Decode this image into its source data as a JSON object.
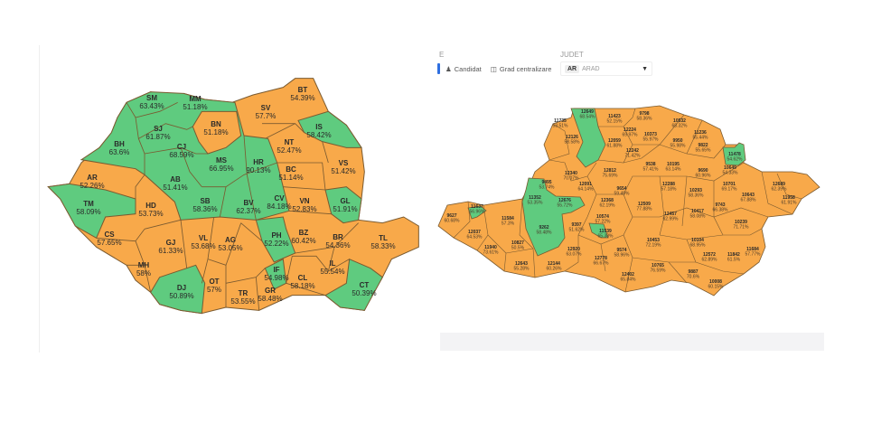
{
  "colors": {
    "orange": "#F8A94A",
    "green": "#5FCB7F",
    "border": "#7a5a30",
    "text": "#2a2a2a"
  },
  "national_map": {
    "counties": [
      {
        "code": "SM",
        "value": "63.43%",
        "color": "green"
      },
      {
        "code": "MM",
        "value": "51.18%",
        "color": "green"
      },
      {
        "code": "BT",
        "value": "54.39%",
        "color": "orange"
      },
      {
        "code": "SV",
        "value": "57.7%",
        "color": "orange"
      },
      {
        "code": "BN",
        "value": "51.18%",
        "color": "orange"
      },
      {
        "code": "IS",
        "value": "58.42%",
        "color": "green"
      },
      {
        "code": "SJ",
        "value": "61.87%",
        "color": "green"
      },
      {
        "code": "BH",
        "value": "63.6%",
        "color": "green"
      },
      {
        "code": "CJ",
        "value": "68.59%",
        "color": "green"
      },
      {
        "code": "NT",
        "value": "52.47%",
        "color": "orange"
      },
      {
        "code": "MS",
        "value": "66.95%",
        "color": "green"
      },
      {
        "code": "HR",
        "value": "90.13%",
        "color": "green"
      },
      {
        "code": "VS",
        "value": "51.42%",
        "color": "orange"
      },
      {
        "code": "BC",
        "value": "51.14%",
        "color": "orange"
      },
      {
        "code": "AR",
        "value": "52.26%",
        "color": "orange"
      },
      {
        "code": "AB",
        "value": "51.41%",
        "color": "green"
      },
      {
        "code": "SB",
        "value": "58.36%",
        "color": "green"
      },
      {
        "code": "BV",
        "value": "62.37%",
        "color": "green"
      },
      {
        "code": "CV",
        "value": "84.18%",
        "color": "green"
      },
      {
        "code": "TM",
        "value": "58.09%",
        "color": "green"
      },
      {
        "code": "HD",
        "value": "53.73%",
        "color": "orange"
      },
      {
        "code": "VN",
        "value": "52.83%",
        "color": "orange"
      },
      {
        "code": "GL",
        "value": "51.91%",
        "color": "green"
      },
      {
        "code": "CS",
        "value": "57.65%",
        "color": "orange"
      },
      {
        "code": "GJ",
        "value": "61.33%",
        "color": "orange"
      },
      {
        "code": "VL",
        "value": "53.68%",
        "color": "orange"
      },
      {
        "code": "AG",
        "value": "53.05%",
        "color": "orange"
      },
      {
        "code": "PH",
        "value": "52.22%",
        "color": "green"
      },
      {
        "code": "BZ",
        "value": "60.42%",
        "color": "orange"
      },
      {
        "code": "BR",
        "value": "54.36%",
        "color": "orange"
      },
      {
        "code": "TL",
        "value": "58.33%",
        "color": "orange"
      },
      {
        "code": "MH",
        "value": "58%",
        "color": "orange"
      },
      {
        "code": "IF",
        "value": "54.98%",
        "color": "green"
      },
      {
        "code": "IL",
        "value": "55.54%",
        "color": "orange"
      },
      {
        "code": "CT",
        "value": "50.39%",
        "color": "green"
      },
      {
        "code": "DJ",
        "value": "50.89%",
        "color": "green"
      },
      {
        "code": "OT",
        "value": "57%",
        "color": "orange"
      },
      {
        "code": "CL",
        "value": "58.18%",
        "color": "orange"
      },
      {
        "code": "TR",
        "value": "53.55%",
        "color": "orange"
      },
      {
        "code": "GR",
        "value": "58.48%",
        "color": "orange"
      }
    ]
  },
  "county_view": {
    "filter_label": "E",
    "mode_options": [
      {
        "label": "Candidat",
        "icon": "person-icon",
        "active": true
      },
      {
        "label": "Grad centralizare",
        "icon": "chart-icon",
        "active": false
      }
    ],
    "judet_label": "JUDET",
    "judet_select": {
      "code": "AR",
      "name": "ARAD"
    },
    "localities": [
      {
        "id": "12649",
        "value": "68.54%",
        "color": "green"
      },
      {
        "id": "11735",
        "value": "53.51%",
        "color": "orange"
      },
      {
        "id": "11423",
        "value": "52.15%",
        "color": "orange"
      },
      {
        "id": "12126",
        "value": "58.58%",
        "color": "orange"
      },
      {
        "id": "12059",
        "value": "61.88%",
        "color": "orange"
      },
      {
        "id": "12340",
        "value": "70.07%",
        "color": "orange"
      },
      {
        "id": "9495",
        "value": "53.74%",
        "color": "green"
      },
      {
        "id": "12091",
        "value": "64.14%",
        "color": "orange"
      },
      {
        "id": "11352",
        "value": "53.35%",
        "color": "green"
      },
      {
        "id": "12676",
        "value": "55.72%",
        "color": "green"
      },
      {
        "id": "11637",
        "value": "56.96%",
        "color": "green"
      },
      {
        "id": "9627",
        "value": "60.68%",
        "color": "orange"
      },
      {
        "id": "11584",
        "value": "57.3%",
        "color": "orange"
      },
      {
        "id": "9262",
        "value": "58.48%",
        "color": "green"
      },
      {
        "id": "9397",
        "value": "51.62%",
        "color": "orange"
      },
      {
        "id": "12368",
        "value": "62.19%",
        "color": "orange"
      },
      {
        "id": "10574",
        "value": "57.22%",
        "color": "orange"
      },
      {
        "id": "11539",
        "value": "65.38%",
        "color": "green"
      },
      {
        "id": "12037",
        "value": "64.53%",
        "color": "orange"
      },
      {
        "id": "11940",
        "value": "73.61%",
        "color": "orange"
      },
      {
        "id": "10827",
        "value": "50.5%",
        "color": "orange"
      },
      {
        "id": "12920",
        "value": "63.07%",
        "color": "orange"
      },
      {
        "id": "12144",
        "value": "60.26%",
        "color": "orange"
      },
      {
        "id": "12643",
        "value": "55.28%",
        "color": "orange"
      },
      {
        "id": "12778",
        "value": "66.67%",
        "color": "orange"
      },
      {
        "id": "9798",
        "value": "58.36%",
        "color": "orange"
      },
      {
        "id": "12224",
        "value": "69.97%",
        "color": "orange"
      },
      {
        "id": "10373",
        "value": "55.97%",
        "color": "orange"
      },
      {
        "id": "12242",
        "value": "71.42%",
        "color": "orange"
      },
      {
        "id": "12812",
        "value": "75.69%",
        "color": "orange"
      },
      {
        "id": "9654",
        "value": "59.49%",
        "color": "orange"
      },
      {
        "id": "9538",
        "value": "57.41%",
        "color": "orange"
      },
      {
        "id": "12509",
        "value": "77.88%",
        "color": "orange"
      },
      {
        "id": "9574",
        "value": "58.96%",
        "color": "orange"
      },
      {
        "id": "12402",
        "value": "65.84%",
        "color": "orange"
      },
      {
        "id": "10453",
        "value": "72.19%",
        "color": "orange"
      },
      {
        "id": "10765",
        "value": "76.59%",
        "color": "orange"
      },
      {
        "id": "10532",
        "value": "68.32%",
        "color": "orange"
      },
      {
        "id": "11236",
        "value": "55.44%",
        "color": "orange"
      },
      {
        "id": "9950",
        "value": "55.98%",
        "color": "orange"
      },
      {
        "id": "9822",
        "value": "55.65%",
        "color": "orange"
      },
      {
        "id": "10195",
        "value": "63.14%",
        "color": "orange"
      },
      {
        "id": "11478",
        "value": "54.62%",
        "color": "green"
      },
      {
        "id": "9690",
        "value": "60.96%",
        "color": "orange"
      },
      {
        "id": "10649",
        "value": "54.33%",
        "color": "orange"
      },
      {
        "id": "12288",
        "value": "57.18%",
        "color": "orange"
      },
      {
        "id": "10293",
        "value": "58.36%",
        "color": "orange"
      },
      {
        "id": "10701",
        "value": "69.17%",
        "color": "orange"
      },
      {
        "id": "12689",
        "value": "62.39%",
        "color": "orange"
      },
      {
        "id": "10643",
        "value": "67.88%",
        "color": "orange"
      },
      {
        "id": "11958",
        "value": "61.91%",
        "color": "orange"
      },
      {
        "id": "9743",
        "value": "66.38%",
        "color": "orange"
      },
      {
        "id": "12457",
        "value": "62.99%",
        "color": "orange"
      },
      {
        "id": "10417",
        "value": "58.08%",
        "color": "orange"
      },
      {
        "id": "10239",
        "value": "71.71%",
        "color": "orange"
      },
      {
        "id": "10104",
        "value": "68.95%",
        "color": "orange"
      },
      {
        "id": "11684",
        "value": "57.77%",
        "color": "orange"
      },
      {
        "id": "12572",
        "value": "62.89%",
        "color": "orange"
      },
      {
        "id": "11842",
        "value": "61.5%",
        "color": "orange"
      },
      {
        "id": "9887",
        "value": "70.6%",
        "color": "orange"
      },
      {
        "id": "10008",
        "value": "60.15%",
        "color": "orange"
      }
    ]
  }
}
